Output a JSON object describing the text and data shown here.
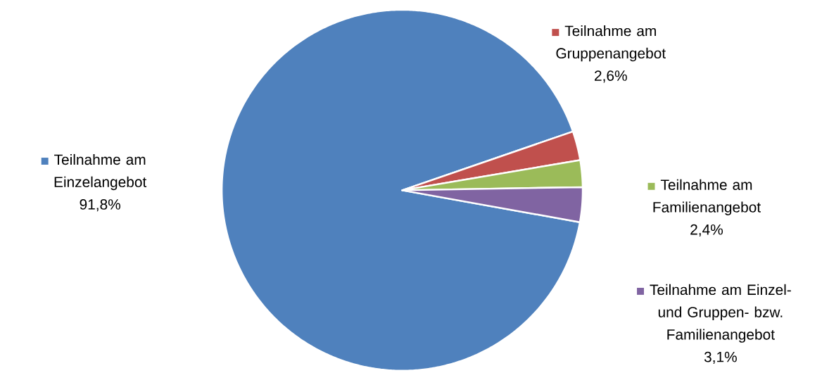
{
  "chart_data": {
    "type": "pie",
    "categories": [
      "Teilnahme am Einzelangebot",
      "Teilnahme am Gruppenangebot",
      "Teilnahme am Familienangebot",
      "Teilnahme am Einzel- und Gruppen- bzw. Familienangebot"
    ],
    "values": [
      91.8,
      2.6,
      2.4,
      3.1
    ],
    "value_labels": [
      "91,8%",
      "2,6%",
      "2,4%",
      "3,1%"
    ],
    "colors": [
      "#4f81bd",
      "#c0504d",
      "#9bbb59",
      "#8064a2"
    ],
    "legend": "right"
  }
}
